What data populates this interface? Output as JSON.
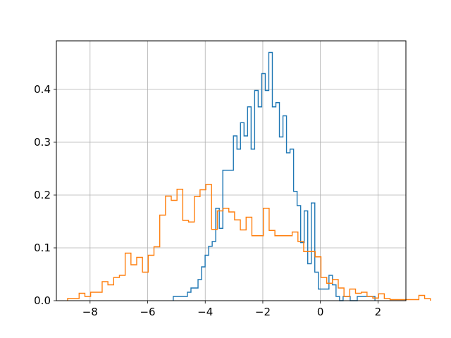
{
  "chart_data": {
    "type": "histogram",
    "title": "",
    "xlabel": "",
    "ylabel": "",
    "xlim": [
      -9.17,
      2.97
    ],
    "ylim": [
      0,
      0.492
    ],
    "grid": true,
    "x_ticks": [
      -8,
      -6,
      -4,
      -2,
      0,
      2
    ],
    "x_tick_labels": [
      "−8",
      "−6",
      "−4",
      "−2",
      "0",
      "2"
    ],
    "y_ticks": [
      0.0,
      0.1,
      0.2,
      0.3,
      0.4
    ],
    "y_tick_labels": [
      "0.0",
      "0.1",
      "0.2",
      "0.3",
      "0.4"
    ],
    "series": [
      {
        "color": "#1f77b4",
        "bin_start": -5.11,
        "bin_width": 0.1229,
        "values": [
          0.008,
          0.008,
          0.008,
          0.008,
          0.016,
          0.024,
          0.024,
          0.04,
          0.064,
          0.086,
          0.103,
          0.112,
          0.175,
          0.137,
          0.247,
          0.247,
          0.247,
          0.312,
          0.287,
          0.337,
          0.312,
          0.367,
          0.287,
          0.398,
          0.367,
          0.43,
          0.398,
          0.47,
          0.367,
          0.375,
          0.31,
          0.35,
          0.28,
          0.287,
          0.207,
          0.18,
          0.11,
          0.17,
          0.07,
          0.185,
          0.054,
          0.022,
          0.022,
          0.022,
          0.048,
          0.03,
          0.008,
          0,
          0.008,
          0.008,
          0,
          0,
          0.008,
          0.008,
          0.008,
          0.008,
          0.008
        ]
      },
      {
        "color": "#ff7f0e",
        "bin_start": -8.78,
        "bin_width": 0.2,
        "values": [
          0.004,
          0.004,
          0.014,
          0.008,
          0.016,
          0.016,
          0.036,
          0.03,
          0.044,
          0.048,
          0.09,
          0.068,
          0.082,
          0.054,
          0.086,
          0.102,
          0.162,
          0.198,
          0.19,
          0.211,
          0.152,
          0.149,
          0.197,
          0.21,
          0.22,
          0.135,
          0.17,
          0.175,
          0.168,
          0.153,
          0.134,
          0.158,
          0.123,
          0.123,
          0.175,
          0.133,
          0.123,
          0.123,
          0.123,
          0.13,
          0.112,
          0.093,
          0.093,
          0.083,
          0.044,
          0.033,
          0.04,
          0.024,
          0.008,
          0.022,
          0.014,
          0.016,
          0.008,
          0.005,
          0.013,
          0.004,
          0.002,
          0.002,
          0.002,
          0.002,
          0.002,
          0.01,
          0.004
        ]
      }
    ]
  }
}
